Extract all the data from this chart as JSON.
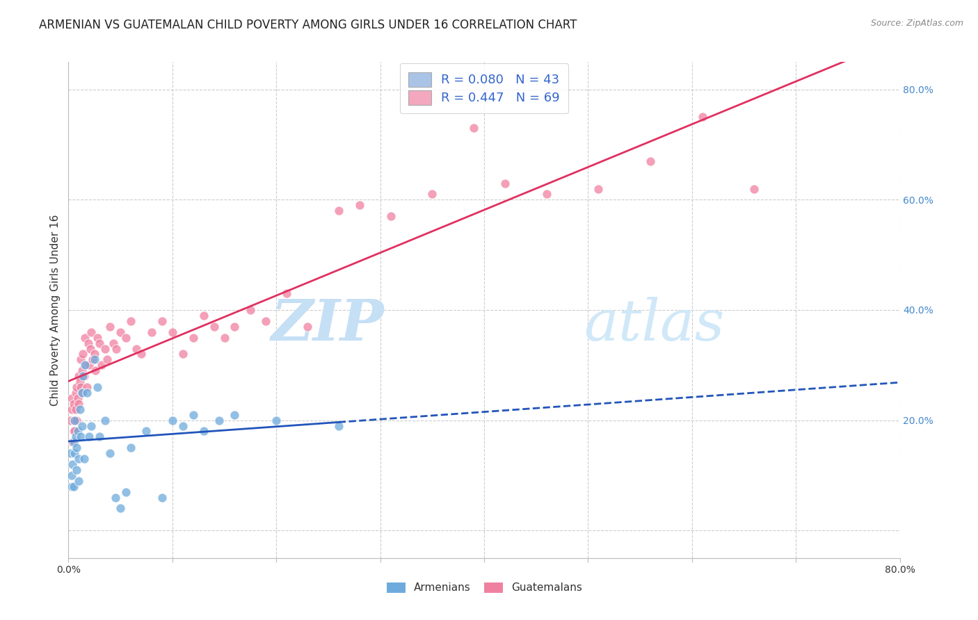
{
  "title": "ARMENIAN VS GUATEMALAN CHILD POVERTY AMONG GIRLS UNDER 16 CORRELATION CHART",
  "source": "Source: ZipAtlas.com",
  "ylabel": "Child Poverty Among Girls Under 16",
  "xlim": [
    0.0,
    0.8
  ],
  "ylim": [
    -0.05,
    0.85
  ],
  "yticks": [
    0.0,
    0.2,
    0.4,
    0.6,
    0.8
  ],
  "ytick_labels": [
    "",
    "20.0%",
    "40.0%",
    "60.0%",
    "80.0%"
  ],
  "armenian_R": 0.08,
  "armenian_N": 43,
  "guatemalan_R": 0.447,
  "guatemalan_N": 69,
  "legend_color_armenian": "#aac4e8",
  "legend_color_guatemalan": "#f4a8c0",
  "scatter_color_armenian": "#6eaadc",
  "scatter_color_guatemalan": "#f080a0",
  "line_color_armenian": "#2255bb",
  "line_color_guatemalan": "#e03060",
  "watermark_zip_color": "#c8dff0",
  "watermark_atlas_color": "#b8d4ee",
  "background_color": "#ffffff",
  "grid_color": "#cccccc",
  "title_fontsize": 12,
  "axis_label_fontsize": 11,
  "legend_fontsize": 13,
  "armenian_x": [
    0.002,
    0.003,
    0.003,
    0.004,
    0.005,
    0.005,
    0.006,
    0.006,
    0.007,
    0.008,
    0.008,
    0.009,
    0.01,
    0.01,
    0.011,
    0.012,
    0.013,
    0.013,
    0.014,
    0.015,
    0.016,
    0.018,
    0.02,
    0.022,
    0.025,
    0.028,
    0.03,
    0.035,
    0.04,
    0.045,
    0.05,
    0.055,
    0.06,
    0.075,
    0.09,
    0.1,
    0.11,
    0.12,
    0.13,
    0.145,
    0.16,
    0.2,
    0.26
  ],
  "armenian_y": [
    0.14,
    0.1,
    0.08,
    0.12,
    0.16,
    0.08,
    0.14,
    0.2,
    0.17,
    0.15,
    0.11,
    0.18,
    0.13,
    0.09,
    0.22,
    0.17,
    0.25,
    0.19,
    0.28,
    0.13,
    0.3,
    0.25,
    0.17,
    0.19,
    0.31,
    0.26,
    0.17,
    0.2,
    0.14,
    0.06,
    0.04,
    0.07,
    0.15,
    0.18,
    0.06,
    0.2,
    0.19,
    0.21,
    0.18,
    0.2,
    0.21,
    0.2,
    0.19
  ],
  "guatemalan_x": [
    0.002,
    0.003,
    0.003,
    0.004,
    0.005,
    0.005,
    0.006,
    0.006,
    0.007,
    0.007,
    0.008,
    0.008,
    0.009,
    0.01,
    0.01,
    0.011,
    0.012,
    0.012,
    0.013,
    0.013,
    0.014,
    0.015,
    0.016,
    0.017,
    0.018,
    0.019,
    0.02,
    0.021,
    0.022,
    0.023,
    0.025,
    0.026,
    0.028,
    0.03,
    0.032,
    0.035,
    0.037,
    0.04,
    0.043,
    0.046,
    0.05,
    0.055,
    0.06,
    0.065,
    0.07,
    0.08,
    0.09,
    0.1,
    0.11,
    0.12,
    0.13,
    0.14,
    0.15,
    0.16,
    0.175,
    0.19,
    0.21,
    0.23,
    0.26,
    0.28,
    0.31,
    0.35,
    0.39,
    0.42,
    0.46,
    0.51,
    0.56,
    0.61,
    0.66
  ],
  "guatemalan_y": [
    0.2,
    0.24,
    0.22,
    0.16,
    0.18,
    0.23,
    0.2,
    0.18,
    0.25,
    0.22,
    0.26,
    0.2,
    0.24,
    0.28,
    0.23,
    0.27,
    0.31,
    0.26,
    0.29,
    0.25,
    0.32,
    0.28,
    0.35,
    0.3,
    0.26,
    0.34,
    0.3,
    0.33,
    0.36,
    0.31,
    0.32,
    0.29,
    0.35,
    0.34,
    0.3,
    0.33,
    0.31,
    0.37,
    0.34,
    0.33,
    0.36,
    0.35,
    0.38,
    0.33,
    0.32,
    0.36,
    0.38,
    0.36,
    0.32,
    0.35,
    0.39,
    0.37,
    0.35,
    0.37,
    0.4,
    0.38,
    0.43,
    0.37,
    0.58,
    0.59,
    0.57,
    0.61,
    0.73,
    0.63,
    0.61,
    0.62,
    0.67,
    0.75,
    0.62
  ]
}
